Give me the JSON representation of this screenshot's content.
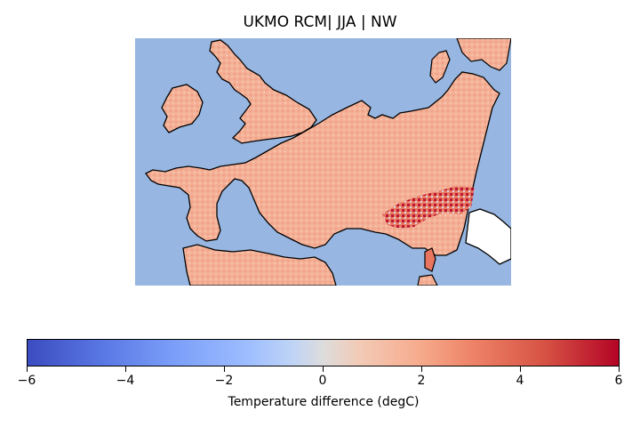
{
  "title": "UKMO RCM| JJA | NW",
  "colorbar": {
    "label": "Temperature difference (degC)",
    "ticks": [
      "−6",
      "−4",
      "−2",
      "0",
      "2",
      "4",
      "6"
    ],
    "range": [
      -6,
      6
    ],
    "colormap": "coolwarm",
    "colors": {
      "low": "#3b4cc0",
      "mid": "#dddcdc",
      "high": "#b40426"
    }
  },
  "map": {
    "region": "North-west Europe",
    "sea_color": "#97b6e1",
    "land_color": "#f4b096",
    "coastline_color": "#000000"
  }
}
